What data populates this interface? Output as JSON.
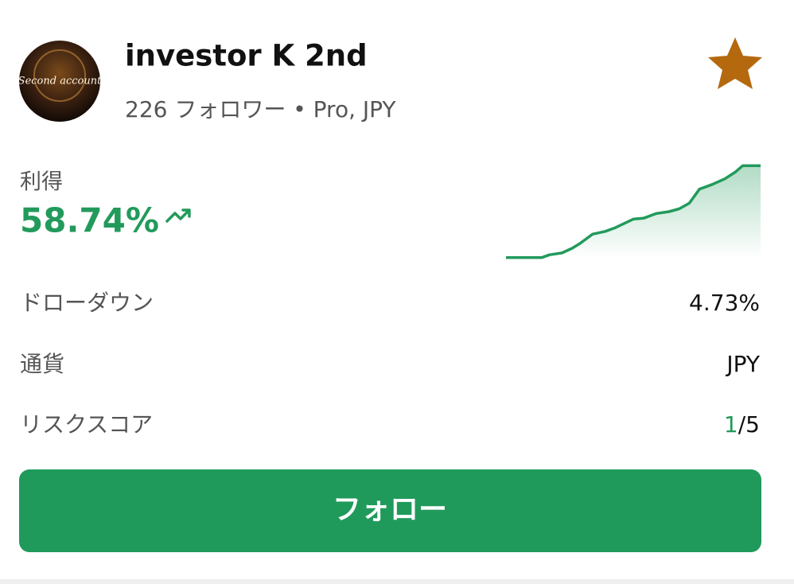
{
  "profile": {
    "name": "investor K 2nd",
    "subtitle": "226 フォロワー • Pro, JPY",
    "avatar_text": "Second account"
  },
  "profit": {
    "label": "利得",
    "value": "58.74%"
  },
  "sparkline": {
    "type": "line",
    "color": "#229a5b",
    "x": [
      0,
      14,
      17,
      22,
      26,
      29,
      34,
      39,
      43,
      50,
      54,
      59,
      64,
      68,
      72,
      76,
      81,
      86,
      90,
      93,
      100
    ],
    "values": [
      1,
      1,
      4,
      6,
      11,
      16,
      26,
      29,
      33,
      42,
      43,
      48,
      50,
      53,
      59,
      74,
      79,
      85,
      92,
      99,
      99
    ],
    "xlim": [
      0,
      100
    ],
    "ylim": [
      0,
      100
    ]
  },
  "stats": {
    "drawdown": {
      "label": "ドローダウン",
      "value": "4.73%"
    },
    "currency": {
      "label": "通貨",
      "value": "JPY"
    },
    "risk": {
      "label": "リスクスコア",
      "score": "1",
      "max": "/5"
    }
  },
  "button": {
    "label": "フォロー"
  }
}
